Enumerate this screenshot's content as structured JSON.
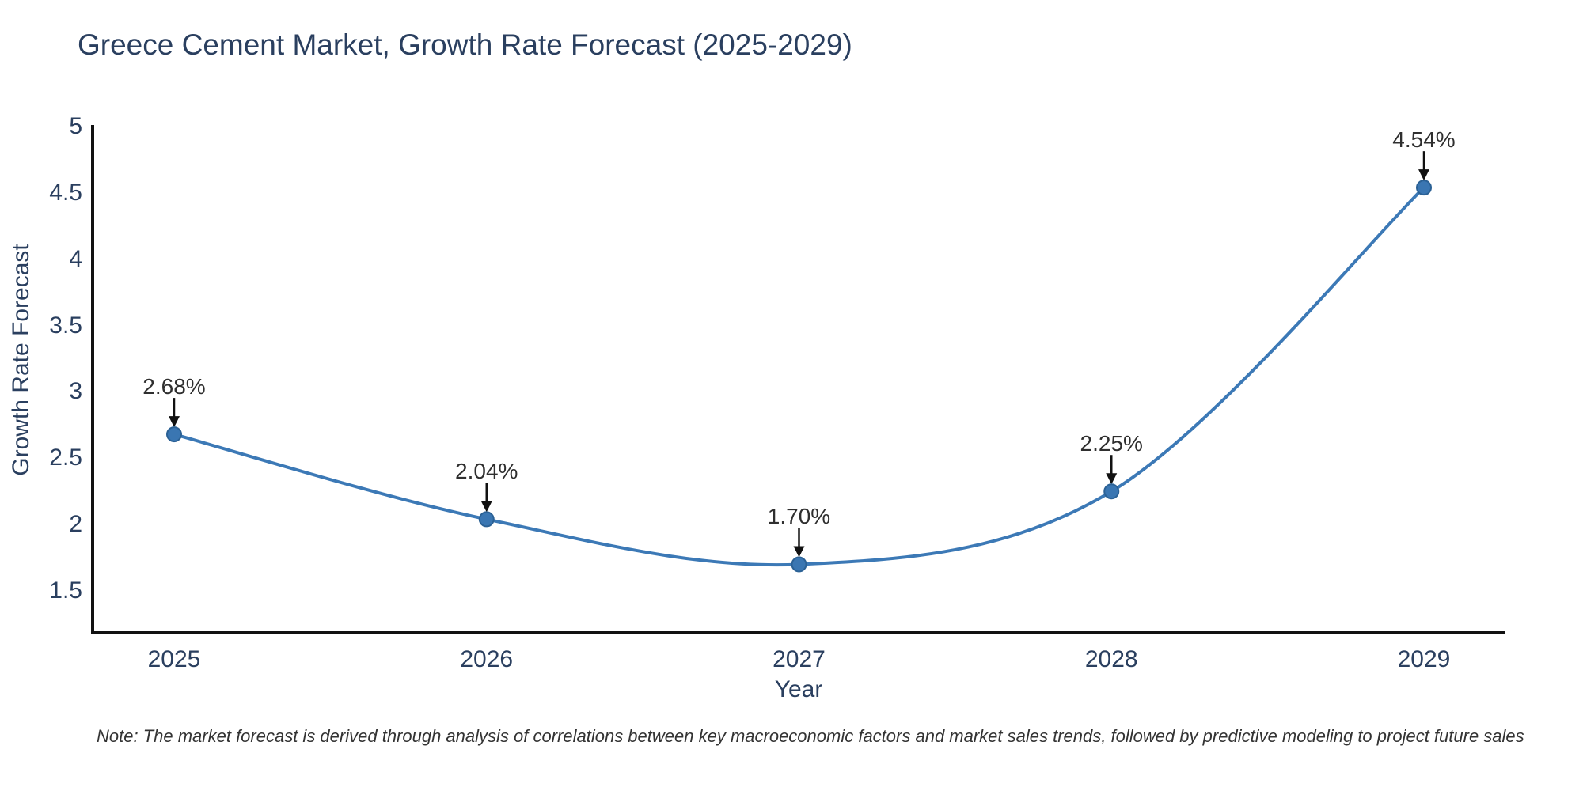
{
  "chart_data": {
    "type": "line",
    "line_shape": "spline",
    "title": "Greece Cement Market, Growth Rate Forecast (2025-2029)",
    "xlabel": "Year",
    "ylabel": "Growth Rate Forecast",
    "x": [
      "2025",
      "2026",
      "2027",
      "2028",
      "2029"
    ],
    "values": [
      2.68,
      2.04,
      1.7,
      2.25,
      4.54
    ],
    "point_labels": [
      "2.68%",
      "2.04%",
      "1.70%",
      "2.25%",
      "4.54%"
    ],
    "yticks": [
      "1.5",
      "2",
      "2.5",
      "3",
      "3.5",
      "4",
      "4.5",
      "5"
    ],
    "ytick_values": [
      1.5,
      2,
      2.5,
      3,
      3.5,
      4,
      4.5,
      5
    ],
    "ylim": [
      1.18,
      5.0
    ],
    "grid": false,
    "legend_position": "none",
    "annotations_have_arrows": true,
    "note": "Note: The market forecast is derived through analysis of correlations between key macroeconomic factors and market sales trends, followed by predictive modeling to project future sales",
    "colors": {
      "line": "#3c79b6",
      "marker_fill": "#3a76b2",
      "marker_stroke": "#2b6195",
      "axis_line": "#111111",
      "arrow": "#111111",
      "title_text": "#2a3f5f",
      "tick_text": "#2a3f5f",
      "annotation_text": "#2f2f2f",
      "background": "#ffffff"
    }
  }
}
